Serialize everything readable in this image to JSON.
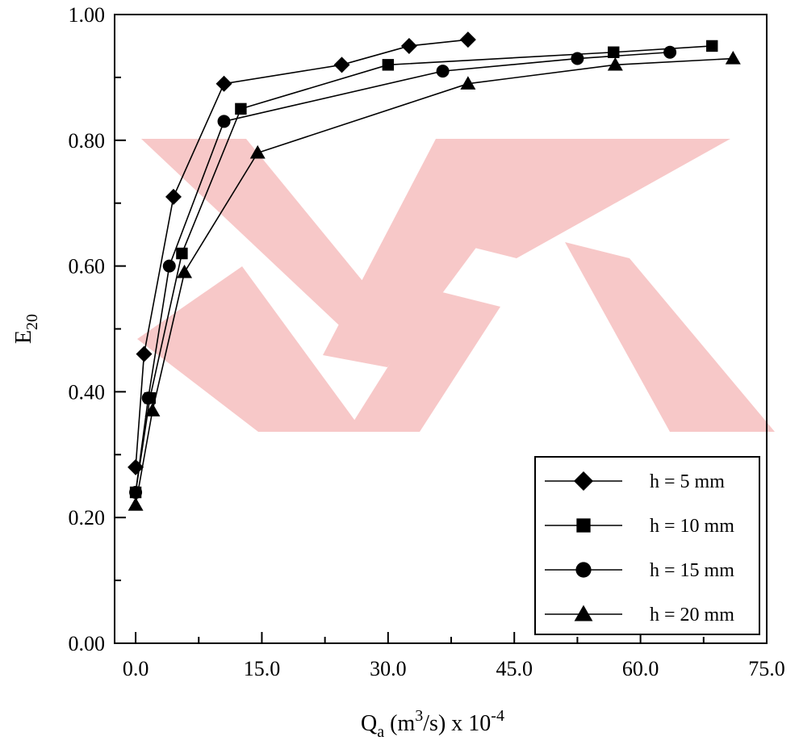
{
  "chart_data": {
    "type": "line",
    "title": "",
    "xlabel": {
      "main": "Q",
      "sub": "a",
      "rest1": " (m",
      "sup": "3",
      "rest2": "/s) x 10",
      "sup2": "-4"
    },
    "ylabel": {
      "main": "E",
      "sub": "20"
    },
    "xlim": [
      -2.5,
      75
    ],
    "ylim": [
      0,
      1
    ],
    "xticks": [
      0,
      15,
      30,
      45,
      60,
      75
    ],
    "xtick_labels": [
      "0.0",
      "15.0",
      "30.0",
      "45.0",
      "60.0",
      "75.0"
    ],
    "xminor": [
      7.5,
      22.5,
      37.5,
      52.5,
      67.5
    ],
    "yticks": [
      0,
      0.2,
      0.4,
      0.6,
      0.8,
      1.0
    ],
    "ytick_labels": [
      "0.00",
      "0.20",
      "0.40",
      "0.60",
      "0.80",
      "1.00"
    ],
    "yminor": [
      0.1,
      0.3,
      0.5,
      0.7,
      0.9
    ],
    "grid": false,
    "legend_position": "bottom-right",
    "series": [
      {
        "name": "h = 5 mm",
        "marker": "diamond",
        "x": [
          0.0,
          1.0,
          4.5,
          10.5,
          24.5,
          32.5,
          39.5
        ],
        "y": [
          0.28,
          0.46,
          0.71,
          0.89,
          0.92,
          0.95,
          0.96
        ]
      },
      {
        "name": "h = 10 mm",
        "marker": "square",
        "x": [
          0.0,
          1.7,
          5.5,
          12.5,
          30.0,
          56.8,
          68.5
        ],
        "y": [
          0.24,
          0.39,
          0.62,
          0.85,
          0.92,
          0.94,
          0.95
        ]
      },
      {
        "name": "h = 15 mm",
        "marker": "circle",
        "x": [
          0.0,
          1.5,
          4.0,
          10.5,
          36.5,
          52.5,
          63.5
        ],
        "y": [
          0.24,
          0.39,
          0.6,
          0.83,
          0.91,
          0.93,
          0.94
        ]
      },
      {
        "name": "h = 20 mm",
        "marker": "triangle",
        "x": [
          0.0,
          2.0,
          5.8,
          14.5,
          39.5,
          57.0,
          71.0
        ],
        "y": [
          0.22,
          0.37,
          0.59,
          0.78,
          0.89,
          0.92,
          0.93
        ]
      }
    ]
  }
}
